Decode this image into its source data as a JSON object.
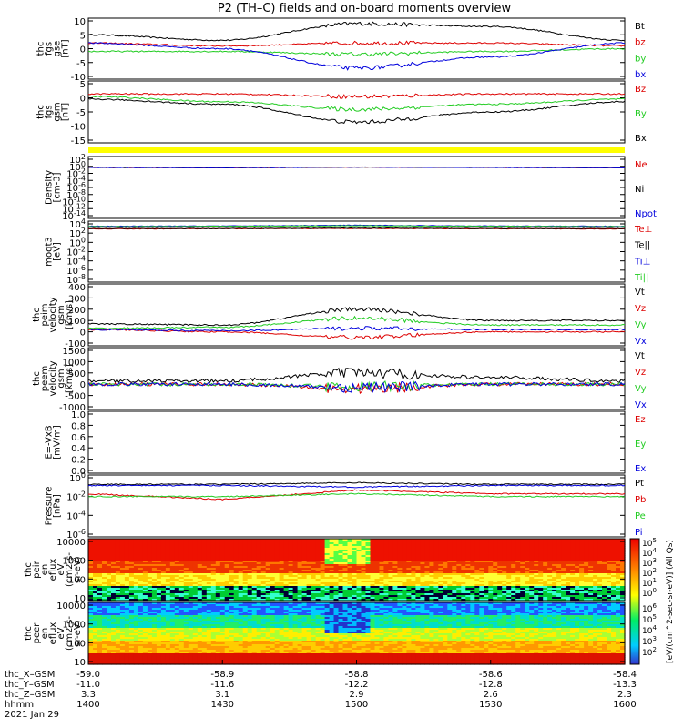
{
  "title": "P2 (TH–C) fields and on‑board moments overview",
  "footer": {
    "rows": [
      {
        "label": "thc_X–GSM",
        "values": [
          "-59.0",
          "-58.9",
          "-58.8",
          "-58.6",
          "-58.4"
        ]
      },
      {
        "label": "thc_Y–GSM",
        "values": [
          "-11.0",
          "-11.6",
          "-12.2",
          "-12.8",
          "-13.3"
        ]
      },
      {
        "label": "thc_Z–GSM",
        "values": [
          "3.3",
          "3.1",
          "2.9",
          "2.6",
          "2.3"
        ]
      },
      {
        "label": "hhmm",
        "values": [
          "1400",
          "1430",
          "1500",
          "1530",
          "1600"
        ]
      }
    ],
    "date": "2021 Jan 29"
  },
  "colors": {
    "black": "#000000",
    "red": "#dd0000",
    "green": "#22cc22",
    "blue": "#0000dd",
    "yellow": "#ffff00"
  },
  "colorbar": {
    "label": "[eV/(cm^2-sec-sr-eV)] (All Qs)",
    "ticks_upper": [
      "10^5",
      "10^4",
      "10^3",
      "10^2",
      "10^1",
      "10^0"
    ],
    "ticks_lower": [
      "10^6",
      "10^5",
      "10^4",
      "10^3",
      "10^2"
    ]
  },
  "chart_data": [
    {
      "type": "line",
      "id": "fgs-gse",
      "ylabel": [
        "thc",
        "fgs",
        "gse",
        "[nT]"
      ],
      "ylim": [
        -10,
        10
      ],
      "yticks": [
        "10",
        "5",
        "0",
        "-5",
        "-10"
      ],
      "x": [
        "1400",
        "1430",
        "1500",
        "1530",
        "1600"
      ],
      "series": [
        {
          "name": "Bt",
          "color": "#000000",
          "values": [
            5,
            3,
            9,
            8,
            3
          ]
        },
        {
          "name": "bz",
          "color": "#dd0000",
          "values": [
            2,
            1,
            2,
            2,
            1
          ]
        },
        {
          "name": "by",
          "color": "#22cc22",
          "values": [
            -1,
            -1,
            -2,
            -1,
            0
          ]
        },
        {
          "name": "bx",
          "color": "#0000dd",
          "values": [
            2,
            0,
            -7,
            -3,
            2
          ]
        }
      ]
    },
    {
      "type": "line",
      "id": "fgs-gsm",
      "ylabel": [
        "thc",
        "fgs",
        "gsm",
        "[nT]"
      ],
      "ylim": [
        -17,
        5
      ],
      "yticks": [
        "5",
        "0",
        "-5",
        "-10",
        "-15"
      ],
      "series": [
        {
          "name": "Bz",
          "color": "#dd0000",
          "values": [
            1,
            1,
            0,
            1,
            1
          ]
        },
        {
          "name": "By",
          "color": "#22cc22",
          "values": [
            0,
            -2,
            -5,
            -3,
            -1
          ]
        },
        {
          "name": "Bx",
          "color": "#000000",
          "values": [
            -1,
            -3,
            -10,
            -6,
            -2
          ]
        }
      ]
    },
    {
      "type": "line",
      "id": "density",
      "ylabel": [
        "Density",
        "[cm-3]"
      ],
      "scale": "log",
      "yticks": [
        "10^2",
        "10^0",
        "10^-2",
        "10^-4",
        "10^-6",
        "10^-8",
        "10^-10",
        "10^-12",
        "10^-14"
      ],
      "series": [
        {
          "name": "Ne",
          "color": "#dd0000",
          "values": [
            0.5,
            0.4,
            0.6,
            0.5,
            0.4
          ]
        },
        {
          "name": "Ni",
          "color": "#000000",
          "values": [
            0.5,
            0.4,
            0.6,
            0.5,
            0.4
          ]
        },
        {
          "name": "Npot",
          "color": "#0000dd",
          "values": [
            0.5,
            0.4,
            0.6,
            0.5,
            0.4
          ]
        }
      ]
    },
    {
      "type": "line",
      "id": "temp",
      "ylabel": [
        "moqt3",
        "[eV]"
      ],
      "scale": "log",
      "yticks": [
        "10^4",
        "10^2",
        "10^0",
        "10^-2",
        "10^-4",
        "10^-6",
        "10^-8"
      ],
      "series": [
        {
          "name": "Te⊥",
          "color": "#dd0000",
          "values": [
            800,
            900,
            1000,
            900,
            800
          ]
        },
        {
          "name": "Te||",
          "color": "#000000",
          "values": [
            1000,
            1000,
            1200,
            1000,
            1000
          ]
        },
        {
          "name": "Ti⊥",
          "color": "#0000dd",
          "values": [
            3000,
            3500,
            5000,
            3500,
            3000
          ]
        },
        {
          "name": "Ti||",
          "color": "#22cc22",
          "values": [
            2500,
            3000,
            4000,
            3000,
            2500
          ]
        }
      ]
    },
    {
      "type": "line",
      "id": "peim-vel",
      "ylabel": [
        "thc",
        "peim",
        "velocity",
        "gsm",
        "[km/s]"
      ],
      "ylim": [
        -100,
        400
      ],
      "yticks": [
        "400",
        "300",
        "200",
        "100",
        "0",
        "-100"
      ],
      "series": [
        {
          "name": "Vt",
          "color": "#000000",
          "values": [
            70,
            60,
            200,
            100,
            100
          ]
        },
        {
          "name": "Vz",
          "color": "#dd0000",
          "values": [
            20,
            0,
            -50,
            0,
            0
          ]
        },
        {
          "name": "Vy",
          "color": "#22cc22",
          "values": [
            30,
            40,
            120,
            60,
            60
          ]
        },
        {
          "name": "Vx",
          "color": "#0000dd",
          "values": [
            20,
            10,
            30,
            20,
            20
          ]
        }
      ]
    },
    {
      "type": "line",
      "id": "peem-vel",
      "ylabel": [
        "thc",
        "peem",
        "velocity",
        "gsm",
        "[km/s]"
      ],
      "ylim": [
        -1000,
        1500
      ],
      "yticks": [
        "1500",
        "1000",
        "500",
        "0",
        "-500",
        "-1000"
      ],
      "series": [
        {
          "name": "Vt",
          "color": "#000000",
          "values": [
            150,
            150,
            500,
            300,
            150
          ]
        },
        {
          "name": "Vz",
          "color": "#dd0000",
          "values": [
            0,
            0,
            -200,
            0,
            0
          ]
        },
        {
          "name": "Vy",
          "color": "#22cc22",
          "values": [
            0,
            0,
            -100,
            0,
            0
          ]
        },
        {
          "name": "Vx",
          "color": "#0000dd",
          "values": [
            0,
            0,
            -150,
            0,
            0
          ]
        }
      ]
    },
    {
      "type": "line",
      "id": "efield",
      "ylabel": [
        "E=-VxB",
        "[mV/m]"
      ],
      "ylim": [
        0,
        1
      ],
      "yticks": [
        "1.0",
        "0.8",
        "0.6",
        "0.4",
        "0.2",
        "0.0"
      ],
      "series": [
        {
          "name": "Ez",
          "color": "#dd0000",
          "values": []
        },
        {
          "name": "Ey",
          "color": "#22cc22",
          "values": []
        },
        {
          "name": "Ex",
          "color": "#0000dd",
          "values": []
        }
      ]
    },
    {
      "type": "line",
      "id": "pressure",
      "ylabel": [
        "Pressure",
        "[nPa]"
      ],
      "scale": "log",
      "yticks": [
        "10^0",
        "10^-2",
        "10^-4",
        "10^-6"
      ],
      "series": [
        {
          "name": "Pt",
          "color": "#000000",
          "values": [
            0.2,
            0.2,
            0.3,
            0.2,
            0.2
          ]
        },
        {
          "name": "Pb",
          "color": "#dd0000",
          "values": [
            0.02,
            0.005,
            0.05,
            0.02,
            0.02
          ]
        },
        {
          "name": "Pe",
          "color": "#22cc22",
          "values": [
            0.01,
            0.01,
            0.02,
            0.01,
            0.01
          ]
        },
        {
          "name": "Pi",
          "color": "#0000dd",
          "values": [
            0.15,
            0.15,
            0.1,
            0.15,
            0.15
          ]
        }
      ]
    },
    {
      "type": "heatmap",
      "id": "peir",
      "ylabel": [
        "thc",
        "peir",
        "en",
        "eflux",
        "eV",
        "(cm2-s-",
        "sr-eV)"
      ],
      "scale": "log",
      "yticks": [
        "10000",
        "1000",
        "100",
        "10"
      ]
    },
    {
      "type": "heatmap",
      "id": "peer",
      "ylabel": [
        "thc",
        "peer",
        "en",
        "eflux",
        "eV",
        "(cm2-s-",
        "sr-eV)"
      ],
      "scale": "log",
      "yticks": [
        "10000",
        "1000",
        "100",
        "10"
      ]
    }
  ]
}
